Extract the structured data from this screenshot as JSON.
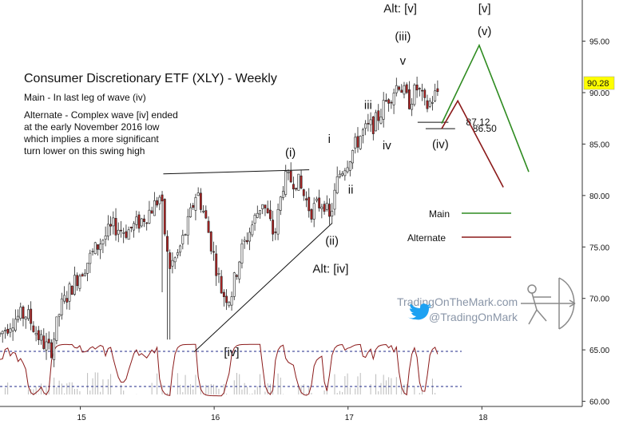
{
  "chart_data": {
    "type": "candlestick",
    "title": "Consumer Discretionary ETF (XLY) - Weekly",
    "notes": [
      "Main - In last leg of wave (iv)",
      "Alternate - Complex wave [iv] ended",
      "at the early November 2016 low",
      "which implies a more significant",
      "turn lower on this swing high"
    ],
    "x_ticks": [
      "15",
      "16",
      "17",
      "18"
    ],
    "x_tick_values": [
      15,
      16,
      17,
      18
    ],
    "xlim": [
      14.4,
      18.75
    ],
    "y_ticks": [
      "60.00",
      "65.00",
      "70.00",
      "75.00",
      "80.00",
      "85.00",
      "90.00",
      "95.00"
    ],
    "y_tick_values": [
      60,
      65,
      70,
      75,
      80,
      85,
      90,
      95
    ],
    "ylim": [
      59.5,
      99
    ],
    "last_price": "90.28",
    "last_price_value": 90.28,
    "levels": [
      {
        "label": "87.12",
        "value": 87.12,
        "x_start": 17.52,
        "x_end": 17.75
      },
      {
        "label": "86.50",
        "value": 86.5,
        "x_start": 17.58,
        "x_end": 17.8
      }
    ],
    "anchors": [
      {
        "t": 14.4,
        "p": 66.5
      },
      {
        "t": 14.5,
        "p": 68.0
      },
      {
        "t": 14.6,
        "p": 68.5
      },
      {
        "t": 14.7,
        "p": 66.0
      },
      {
        "t": 14.78,
        "p": 64.8
      },
      {
        "t": 14.85,
        "p": 69.0
      },
      {
        "t": 14.95,
        "p": 71.5
      },
      {
        "t": 15.05,
        "p": 73.5
      },
      {
        "t": 15.15,
        "p": 75.5
      },
      {
        "t": 15.25,
        "p": 77.0
      },
      {
        "t": 15.35,
        "p": 76.5
      },
      {
        "t": 15.45,
        "p": 77.5
      },
      {
        "t": 15.55,
        "p": 79.0
      },
      {
        "t": 15.6,
        "p": 80.0
      },
      {
        "t": 15.66,
        "p": 73.0
      },
      {
        "t": 15.72,
        "p": 74.0
      },
      {
        "t": 15.8,
        "p": 77.0
      },
      {
        "t": 15.87,
        "p": 80.5
      },
      {
        "t": 15.93,
        "p": 78.0
      },
      {
        "t": 16.0,
        "p": 74.0
      },
      {
        "t": 16.06,
        "p": 70.5
      },
      {
        "t": 16.12,
        "p": 70.0
      },
      {
        "t": 16.2,
        "p": 74.5
      },
      {
        "t": 16.28,
        "p": 77.0
      },
      {
        "t": 16.36,
        "p": 79.5
      },
      {
        "t": 16.45,
        "p": 76.0
      },
      {
        "t": 16.52,
        "p": 81.5
      },
      {
        "t": 16.62,
        "p": 81.5
      },
      {
        "t": 16.72,
        "p": 78.5
      },
      {
        "t": 16.82,
        "p": 79.5
      },
      {
        "t": 16.86,
        "p": 77.5
      },
      {
        "t": 16.93,
        "p": 82.0
      },
      {
        "t": 17.0,
        "p": 83.5
      },
      {
        "t": 17.1,
        "p": 86.0
      },
      {
        "t": 17.2,
        "p": 87.0
      },
      {
        "t": 17.3,
        "p": 89.5
      },
      {
        "t": 17.38,
        "p": 91.0
      },
      {
        "t": 17.45,
        "p": 89.0
      },
      {
        "t": 17.52,
        "p": 90.5
      },
      {
        "t": 17.58,
        "p": 88.5
      },
      {
        "t": 17.68,
        "p": 90.28
      }
    ],
    "scenarios": [
      {
        "name": "Main",
        "color": "#2e8b20",
        "points": [
          {
            "t": 17.7,
            "p": 87.0
          },
          {
            "t": 17.98,
            "p": 94.6
          },
          {
            "t": 18.35,
            "p": 82.3
          }
        ]
      },
      {
        "name": "Alternate",
        "color": "#8b1a1a",
        "points": [
          {
            "t": 17.7,
            "p": 86.5
          },
          {
            "t": 17.82,
            "p": 89.2
          },
          {
            "t": 18.16,
            "p": 80.8
          }
        ]
      }
    ],
    "trendlines": [
      {
        "from": {
          "t": 15.62,
          "p": 82.1
        },
        "to": {
          "t": 16.71,
          "p": 82.5
        }
      },
      {
        "from": {
          "t": 15.85,
          "p": 64.8
        },
        "to": {
          "t": 16.88,
          "p": 77.3
        }
      }
    ],
    "wave_labels": [
      {
        "text": "Alt: [v]",
        "t": 17.39,
        "p": 97.8
      },
      {
        "text": "(iii)",
        "t": 17.41,
        "p": 95.1
      },
      {
        "text": "v",
        "t": 17.41,
        "p": 92.7
      },
      {
        "text": "[v]",
        "t": 18.02,
        "p": 97.8
      },
      {
        "text": "(v)",
        "t": 18.02,
        "p": 95.6
      },
      {
        "text": "(iv)",
        "t": 17.69,
        "p": 84.6
      },
      {
        "text": "i",
        "t": 16.86,
        "p": 85.1
      },
      {
        "text": "iii",
        "t": 17.15,
        "p": 88.4
      },
      {
        "text": "iv",
        "t": 17.29,
        "p": 84.5
      },
      {
        "text": "ii",
        "t": 17.02,
        "p": 80.2
      },
      {
        "text": "(i)",
        "t": 16.57,
        "p": 83.8
      },
      {
        "text": "(ii)",
        "t": 16.88,
        "p": 75.2
      },
      {
        "text": "Alt: [iv]",
        "t": 16.87,
        "p": 72.5
      },
      {
        "text": "[iv]",
        "t": 16.13,
        "p": 64.4
      }
    ],
    "legend": [
      {
        "label": "Main",
        "color": "#2e8b20"
      },
      {
        "label": "Alternate",
        "color": "#8b1a1a"
      }
    ],
    "watermark": {
      "site": "TradingOnTheMark.com",
      "handle": "@TradingOnMark"
    },
    "colors": {
      "up": "#ffffff",
      "down": "#b22222",
      "wick": "#222222",
      "main": "#2e8b20",
      "alternate": "#8b1a1a",
      "oscillator": "#8b1a1a",
      "dotted": "#1f2a8a",
      "badge": "#ffff00",
      "twitter": "#1da1f2"
    }
  }
}
